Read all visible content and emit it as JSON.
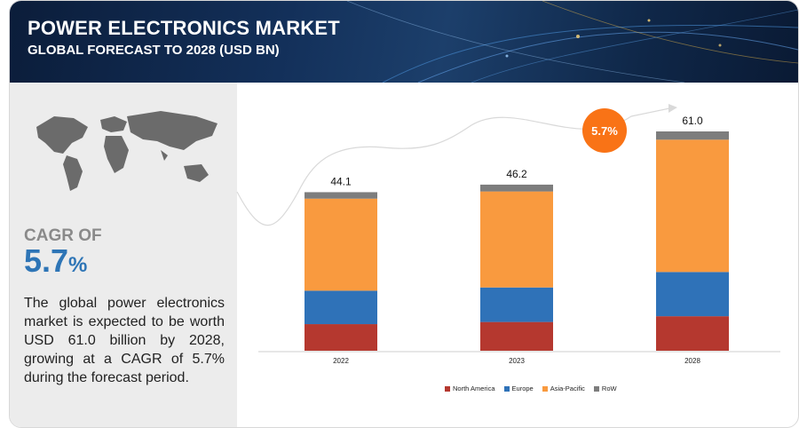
{
  "header": {
    "title": "POWER ELECTRONICS MARKET",
    "subtitle": "GLOBAL FORECAST TO 2028 (USD BN)"
  },
  "sidebar": {
    "cagr_label": "CAGR OF",
    "cagr_value": "5.7",
    "cagr_unit": "%",
    "description": "The global power electronics market is expected to be worth USD 61.0 billion by 2028, growing at a CAGR of 5.7% during the forecast period."
  },
  "chart_data": {
    "type": "bar",
    "stacked": true,
    "categories": [
      "2022",
      "2023",
      "2028"
    ],
    "totals": [
      "44.1",
      "46.2",
      "61.0"
    ],
    "total_values": [
      44.1,
      46.2,
      61.0
    ],
    "cagr_badge": "5.7%",
    "series": [
      {
        "name": "North America",
        "color": "#b5382f",
        "values": [
          7.4,
          8.0,
          9.6
        ]
      },
      {
        "name": "Europe",
        "color": "#2f72b8",
        "values": [
          9.3,
          9.6,
          12.3
        ]
      },
      {
        "name": "Asia-Pacific",
        "color": "#f99a3f",
        "values": [
          25.6,
          26.7,
          36.8
        ]
      },
      {
        "name": "RoW",
        "color": "#7d7d7d",
        "values": [
          1.8,
          1.9,
          2.3
        ]
      }
    ],
    "ylim": [
      0,
      61.0
    ],
    "legend_position": "bottom"
  },
  "colors": {
    "badge": "#f97316",
    "cagr_text": "#2e75b6"
  }
}
